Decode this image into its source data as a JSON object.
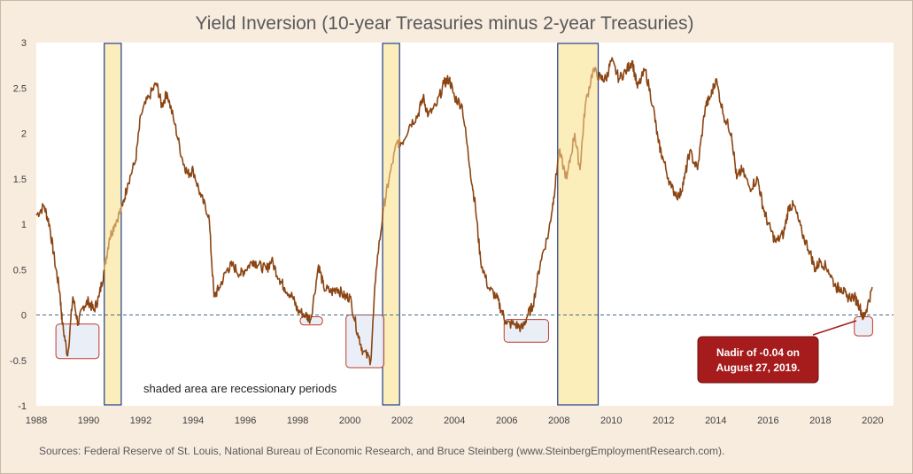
{
  "chart_data": {
    "type": "line",
    "title": "Yield Inversion (10-year Treasuries minus 2-year Treasuries)",
    "xlabel": "",
    "ylabel": "",
    "xlim": [
      1988,
      2020.8
    ],
    "ylim": [
      -1,
      3
    ],
    "x_ticks": [
      1988,
      1990,
      1992,
      1994,
      1996,
      1998,
      2000,
      2002,
      2004,
      2006,
      2008,
      2010,
      2012,
      2014,
      2016,
      2018,
      2020
    ],
    "y_ticks": [
      -1,
      -0.5,
      0,
      0.5,
      1,
      1.5,
      2,
      2.5,
      3
    ],
    "y_tick_labels": [
      "-1",
      "-0.5",
      "0",
      "0.5",
      "1",
      "1.5",
      "2",
      "2.5",
      "3"
    ],
    "grid": false,
    "line_color": "#8b4513",
    "recession_line_color": "#c8955a",
    "recession_fill": "#fbeebb",
    "recession_border": "#1f3c88",
    "zero_line_color": "#4a6a8a",
    "series": [
      {
        "x": [
          1988.0,
          1988.3,
          1988.5,
          1988.7,
          1988.9,
          1989.0,
          1989.2,
          1989.4,
          1989.6,
          1989.8,
          1990.0,
          1990.2,
          1990.4,
          1990.6,
          1990.8,
          1991.0,
          1991.3,
          1991.5,
          1991.8,
          1992.0,
          1992.3,
          1992.6,
          1992.8,
          1993.0,
          1993.3,
          1993.6,
          1993.8,
          1994.0,
          1994.3,
          1994.6,
          1994.8,
          1995.0,
          1995.3,
          1995.5,
          1995.8,
          1996.0,
          1996.3,
          1996.5,
          1996.8,
          1997.0,
          1997.3,
          1997.5,
          1997.8,
          1998.0,
          1998.3,
          1998.5,
          1998.8,
          1999.0,
          1999.3,
          1999.5,
          1999.8,
          2000.0,
          2000.3,
          2000.5,
          2000.8,
          2001.0,
          2001.3,
          2001.5,
          2001.8,
          2002.0,
          2002.3,
          2002.6,
          2002.8,
          2003.0,
          2003.3,
          2003.6,
          2003.8,
          2004.0,
          2004.3,
          2004.6,
          2004.8,
          2005.0,
          2005.3,
          2005.6,
          2005.8,
          2006.0,
          2006.3,
          2006.6,
          2006.8,
          2007.0,
          2007.3,
          2007.6,
          2007.8,
          2008.0,
          2008.3,
          2008.6,
          2008.8,
          2009.0,
          2009.3,
          2009.6,
          2009.8,
          2010.0,
          2010.3,
          2010.6,
          2010.8,
          2011.0,
          2011.3,
          2011.6,
          2011.8,
          2012.0,
          2012.3,
          2012.6,
          2012.8,
          2013.0,
          2013.3,
          2013.6,
          2013.8,
          2014.0,
          2014.3,
          2014.6,
          2014.8,
          2015.0,
          2015.3,
          2015.6,
          2015.8,
          2016.0,
          2016.3,
          2016.6,
          2016.8,
          2017.0,
          2017.3,
          2017.6,
          2017.8,
          2018.0,
          2018.3,
          2018.6,
          2018.8,
          2019.0,
          2019.3,
          2019.5,
          2019.65,
          2019.8,
          2020.0
        ],
        "values": [
          1.1,
          1.2,
          1.0,
          0.6,
          0.25,
          -0.1,
          -0.45,
          0.2,
          -0.1,
          0.1,
          0.15,
          0.05,
          0.2,
          0.5,
          0.85,
          1.0,
          1.2,
          1.45,
          1.7,
          2.2,
          2.4,
          2.55,
          2.3,
          2.45,
          2.1,
          1.7,
          1.55,
          1.6,
          1.3,
          1.1,
          0.2,
          0.3,
          0.5,
          0.55,
          0.45,
          0.5,
          0.6,
          0.55,
          0.5,
          0.6,
          0.4,
          0.3,
          0.2,
          0.05,
          0.0,
          -0.05,
          0.55,
          0.3,
          0.25,
          0.3,
          0.2,
          0.2,
          -0.2,
          -0.4,
          -0.5,
          0.5,
          1.2,
          1.5,
          1.9,
          1.9,
          2.1,
          2.2,
          2.4,
          2.2,
          2.3,
          2.55,
          2.6,
          2.4,
          2.3,
          1.6,
          1.2,
          0.6,
          0.3,
          0.2,
          0.05,
          -0.1,
          -0.1,
          -0.15,
          0.0,
          0.1,
          0.6,
          0.9,
          1.3,
          1.8,
          1.5,
          2.0,
          1.6,
          2.3,
          2.7,
          2.6,
          2.6,
          2.8,
          2.6,
          2.7,
          2.8,
          2.5,
          2.7,
          2.3,
          1.9,
          1.7,
          1.4,
          1.3,
          1.5,
          1.8,
          1.6,
          2.3,
          2.4,
          2.6,
          2.2,
          2.0,
          1.5,
          1.6,
          1.4,
          1.5,
          1.2,
          1.0,
          0.8,
          0.9,
          1.2,
          1.2,
          0.9,
          0.7,
          0.5,
          0.6,
          0.5,
          0.3,
          0.3,
          0.2,
          0.2,
          0.1,
          -0.04,
          0.1,
          0.3
        ]
      }
    ],
    "recession_periods": [
      [
        1990.6,
        1991.25
      ],
      [
        2001.25,
        2001.9
      ],
      [
        2007.95,
        2009.5
      ]
    ],
    "inversion_boxes": [
      {
        "x0": 1988.75,
        "x1": 1990.4,
        "y0": -0.1,
        "y1": -0.48
      },
      {
        "x0": 1998.1,
        "x1": 1998.95,
        "y0": -0.02,
        "y1": -0.11
      },
      {
        "x0": 1999.85,
        "x1": 2001.3,
        "y0": 0.0,
        "y1": -0.58
      },
      {
        "x0": 2005.9,
        "x1": 2007.6,
        "y0": -0.05,
        "y1": -0.3
      },
      {
        "x0": 2019.3,
        "x1": 2020.0,
        "y0": -0.02,
        "y1": -0.23
      }
    ],
    "annotations": {
      "shaded_note": "shaded area are recessionary periods",
      "callout_line1": "Nadir of -0.04 on",
      "callout_line2": "August 27, 2019."
    },
    "source_text": "Sources: Federal Reserve of St. Louis, National Bureau of Economic Research, and Bruce Steinberg (www.SteinbergEmploymentResearch.com)."
  }
}
